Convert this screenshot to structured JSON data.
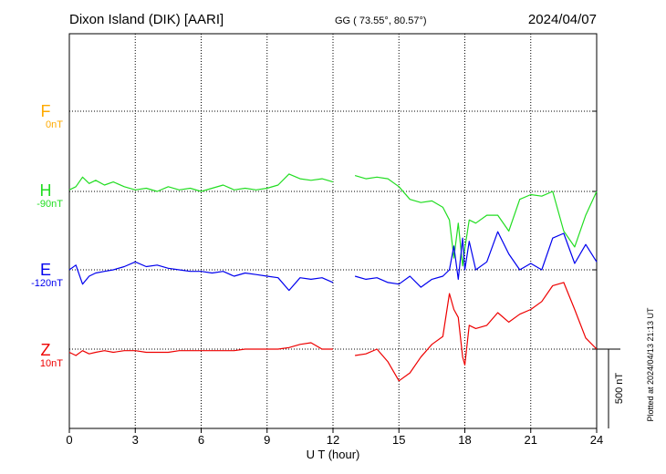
{
  "header": {
    "station": "Dixon Island (DIK)  [AARI]",
    "coords": "GG ( 73.55°,  80.57°)",
    "date": "2024/04/07"
  },
  "footer": {
    "plotted": "Plotted at 2024/04/13 21:13 UT"
  },
  "colors": {
    "F": "#ffaa00",
    "H": "#22dd22",
    "E": "#0000ee",
    "Z": "#ee0000"
  },
  "chart_data": {
    "type": "line",
    "xlabel": "U T (hour)",
    "xlim": [
      0,
      24
    ],
    "xticks": [
      "0",
      "3",
      "6",
      "9",
      "12",
      "15",
      "18",
      "21",
      "24"
    ],
    "scale_bar": {
      "label": "500 nT",
      "value_nT": 500
    },
    "series": [
      {
        "name": "F",
        "baseline_label": "0nT",
        "baseline_nT": 0,
        "x": [],
        "y": []
      },
      {
        "name": "H",
        "baseline_label": "-90nT",
        "baseline_nT": -90,
        "x": [
          0,
          0.3,
          0.6,
          0.9,
          1.2,
          1.6,
          2.0,
          2.5,
          3.0,
          3.5,
          4.0,
          4.5,
          5.0,
          5.5,
          6.0,
          6.5,
          7.0,
          7.5,
          8.0,
          8.5,
          9.0,
          9.5,
          10.0,
          10.5,
          11.0,
          11.5,
          12.0,
          13.0,
          13.5,
          14.0,
          14.5,
          15.0,
          15.5,
          16.0,
          16.5,
          17.0,
          17.3,
          17.5,
          17.7,
          17.9,
          18.0,
          18.2,
          18.5,
          19.0,
          19.5,
          20.0,
          20.5,
          21.0,
          21.5,
          22.0,
          22.5,
          23.0,
          23.5,
          24.0
        ],
        "y": [
          10,
          30,
          90,
          50,
          70,
          40,
          60,
          30,
          10,
          20,
          0,
          30,
          10,
          20,
          0,
          20,
          40,
          10,
          20,
          10,
          20,
          40,
          110,
          80,
          70,
          80,
          60,
          100,
          80,
          90,
          80,
          30,
          -50,
          -70,
          -60,
          -100,
          -180,
          -420,
          -200,
          -470,
          -360,
          -180,
          -200,
          -150,
          -150,
          -250,
          -50,
          -20,
          -30,
          0,
          -250,
          -350,
          -150,
          0
        ]
      },
      {
        "name": "E",
        "baseline_label": "-120nT",
        "baseline_nT": -120,
        "x": [
          0,
          0.3,
          0.6,
          0.9,
          1.2,
          1.6,
          2.0,
          2.5,
          3.0,
          3.5,
          4.0,
          4.5,
          5.0,
          5.5,
          6.0,
          6.5,
          7.0,
          7.5,
          8.0,
          8.5,
          9.0,
          9.5,
          10.0,
          10.5,
          11.0,
          11.5,
          12.0,
          13.0,
          13.5,
          14.0,
          14.5,
          15.0,
          15.5,
          16.0,
          16.5,
          17.0,
          17.3,
          17.5,
          17.7,
          17.9,
          18.0,
          18.2,
          18.5,
          19.0,
          19.5,
          20.0,
          20.5,
          21.0,
          21.5,
          22.0,
          22.5,
          23.0,
          23.5,
          24.0
        ],
        "y": [
          0,
          30,
          -90,
          -40,
          -20,
          -10,
          0,
          20,
          50,
          20,
          30,
          10,
          0,
          -10,
          -10,
          -20,
          -10,
          -40,
          -20,
          -30,
          -40,
          -50,
          -130,
          -50,
          -60,
          -50,
          -80,
          -40,
          -60,
          -50,
          -80,
          -90,
          -40,
          -110,
          -60,
          -40,
          0,
          150,
          -60,
          200,
          0,
          180,
          0,
          50,
          240,
          100,
          0,
          40,
          0,
          200,
          230,
          40,
          160,
          50
        ]
      },
      {
        "name": "Z",
        "baseline_label": "10nT",
        "baseline_nT": 10,
        "x": [
          0,
          0.3,
          0.6,
          0.9,
          1.2,
          1.6,
          2.0,
          2.5,
          3.0,
          3.5,
          4.0,
          4.5,
          5.0,
          5.5,
          6.0,
          6.5,
          7.0,
          7.5,
          8.0,
          8.5,
          9.0,
          9.5,
          10.0,
          10.5,
          11.0,
          11.5,
          12.0,
          13.0,
          13.5,
          14.0,
          14.5,
          15.0,
          15.5,
          16.0,
          16.5,
          17.0,
          17.3,
          17.5,
          17.7,
          17.9,
          18.0,
          18.2,
          18.5,
          19.0,
          19.5,
          20.0,
          20.5,
          21.0,
          21.5,
          22.0,
          22.5,
          23.0,
          23.5,
          24.0
        ],
        "y": [
          -20,
          -40,
          -10,
          -30,
          -20,
          -10,
          -20,
          -10,
          -10,
          -20,
          -20,
          -20,
          -10,
          -10,
          -10,
          -10,
          -10,
          -10,
          0,
          0,
          0,
          0,
          10,
          30,
          40,
          0,
          0,
          -40,
          -30,
          0,
          -80,
          -200,
          -150,
          -50,
          30,
          80,
          350,
          250,
          200,
          -50,
          -100,
          150,
          130,
          150,
          230,
          170,
          220,
          250,
          300,
          400,
          420,
          250,
          70,
          0
        ]
      }
    ]
  }
}
